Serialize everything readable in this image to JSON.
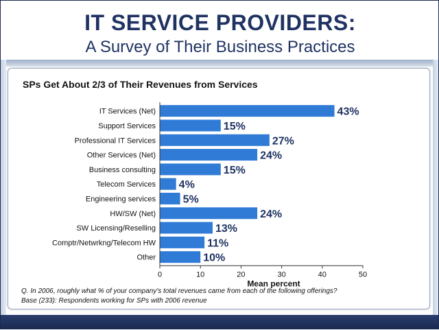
{
  "header": {
    "title": "IT SERVICE PROVIDERS:",
    "subtitle": "A Survey of Their Business Practices"
  },
  "colors": {
    "bar": "#2f7bd6",
    "title": "#1f3262"
  },
  "chart_data": {
    "type": "bar",
    "orientation": "horizontal",
    "title": "SPs Get About 2/3 of Their Revenues from Services",
    "xlabel": "Mean percent",
    "ylabel": "",
    "xlim": [
      0,
      50
    ],
    "ticks": [
      0,
      10,
      20,
      30,
      40,
      50
    ],
    "grid": false,
    "categories": [
      "IT Services (Net)",
      "Support Services",
      "Professional IT Services",
      "Other Services (Net)",
      "Business consulting",
      "Telecom Services",
      "Engineering services",
      "HW/SW (Net)",
      "SW Licensing/Reselling",
      "Comptr/Netwrkng/Telecom HW",
      "Other"
    ],
    "values": [
      43,
      15,
      27,
      24,
      15,
      4,
      5,
      24,
      13,
      11,
      10
    ],
    "data_labels": [
      "43%",
      "15%",
      "27%",
      "24%",
      "15%",
      "4%",
      "5%",
      "24%",
      "13%",
      "11%",
      "10%"
    ]
  },
  "notes": {
    "question": "Q. In 2006, roughly what % of your company's total revenues came from each of the following offerings?",
    "base": "Base (233):  Respondents working for SPs with 2006 revenue"
  }
}
